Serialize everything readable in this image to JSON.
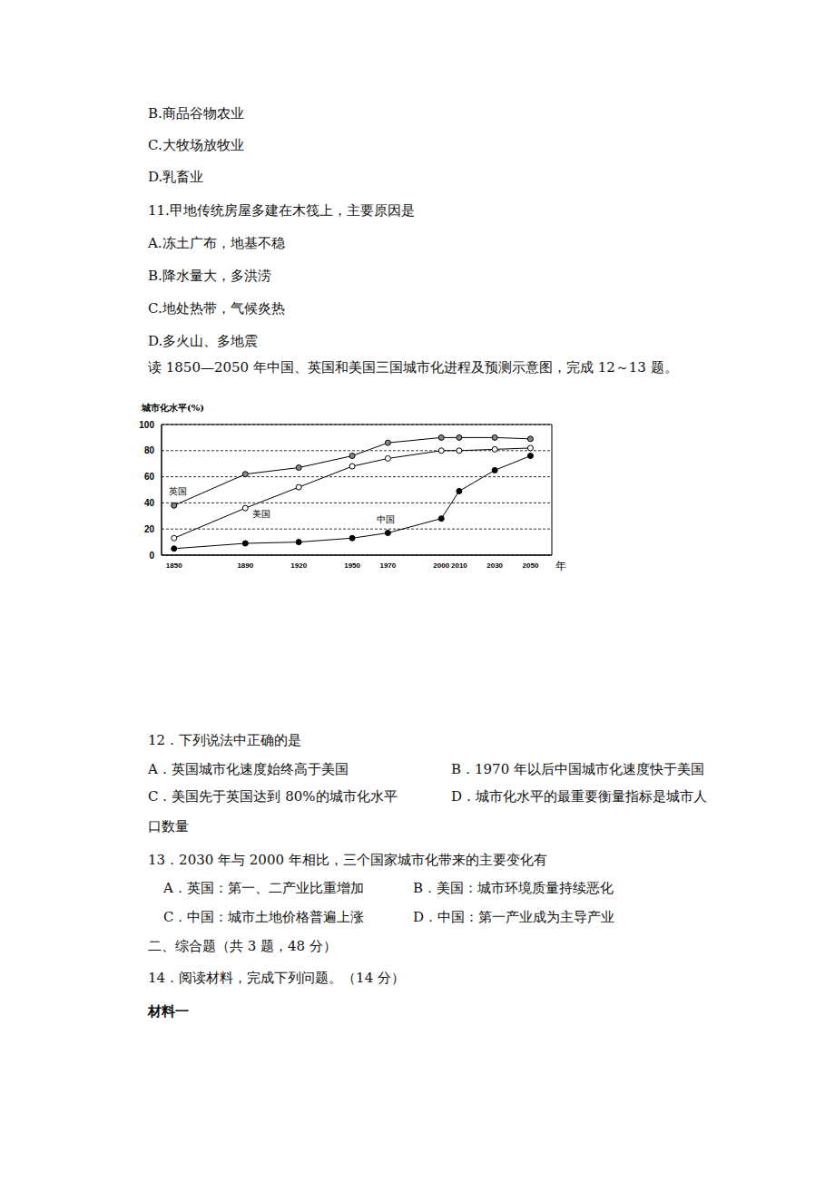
{
  "lines_before": [
    "B.商品谷物农业",
    "C.大牧场放牧业",
    "D.乳畜业"
  ],
  "q11": {
    "stem": "11.甲地传统房屋多建在木筏上，主要原因是",
    "options": [
      "A.冻土广布，地基不稳",
      "B.降水量大，多洪涝",
      "C.地处热带，气候炎热",
      "D.多火山、多地震"
    ]
  },
  "chart_intro": "读 1850—2050 年中国、英国和美国三国城市化进程及预测示意图，完成 12～13 题。",
  "chart_data": {
    "type": "line",
    "y_label": "城市化水平(%)",
    "x_label": "年",
    "x": [
      1850,
      1890,
      1920,
      1950,
      1970,
      2000,
      2010,
      2030,
      2050
    ],
    "xlim": [
      1843,
      2062
    ],
    "xticks": [
      1850,
      1890,
      1920,
      1950,
      1970,
      2000,
      2010,
      2030,
      2050
    ],
    "ylim": [
      0,
      100
    ],
    "yticks": [
      0,
      20,
      40,
      60,
      80,
      100
    ],
    "grid": true,
    "marker": "circle",
    "series": [
      {
        "name": "英国",
        "color": "#888888",
        "values": [
          38,
          62,
          67,
          76,
          86,
          90,
          90,
          90,
          89
        ]
      },
      {
        "name": "美国",
        "color": "#ffffff",
        "values": [
          13,
          36,
          52,
          68,
          74,
          80,
          80,
          81,
          82
        ]
      },
      {
        "name": "中国",
        "color": "#000000",
        "values": [
          5,
          9,
          10,
          13,
          17,
          28,
          49,
          65,
          76
        ]
      }
    ]
  },
  "q12": {
    "stem": "12．下列说法中正确的是",
    "options": [
      "A．英国城市化速度始终高于美国",
      "B．1970 年以后中国城市化速度快于美国",
      "C．美国先于英国达到 80%的城市化水平",
      "D．城市化水平的最重要衡量指标是城市人口数量"
    ]
  },
  "q13": {
    "stem": "13．2030 年与 2000 年相比，三个国家城市化带来的主要变化有",
    "options": [
      "A．英国：第一、二产业比重增加",
      "B．美国：城市环境质量持续恶化",
      "C．中国：城市土地价格普遍上涨",
      "D．中国：第一产业成为主导产业"
    ]
  },
  "section2": "二、综合题（共 3 题，48 分）",
  "q14": "14．阅读材料，完成下列问题。（14 分）",
  "material1": "材料一"
}
